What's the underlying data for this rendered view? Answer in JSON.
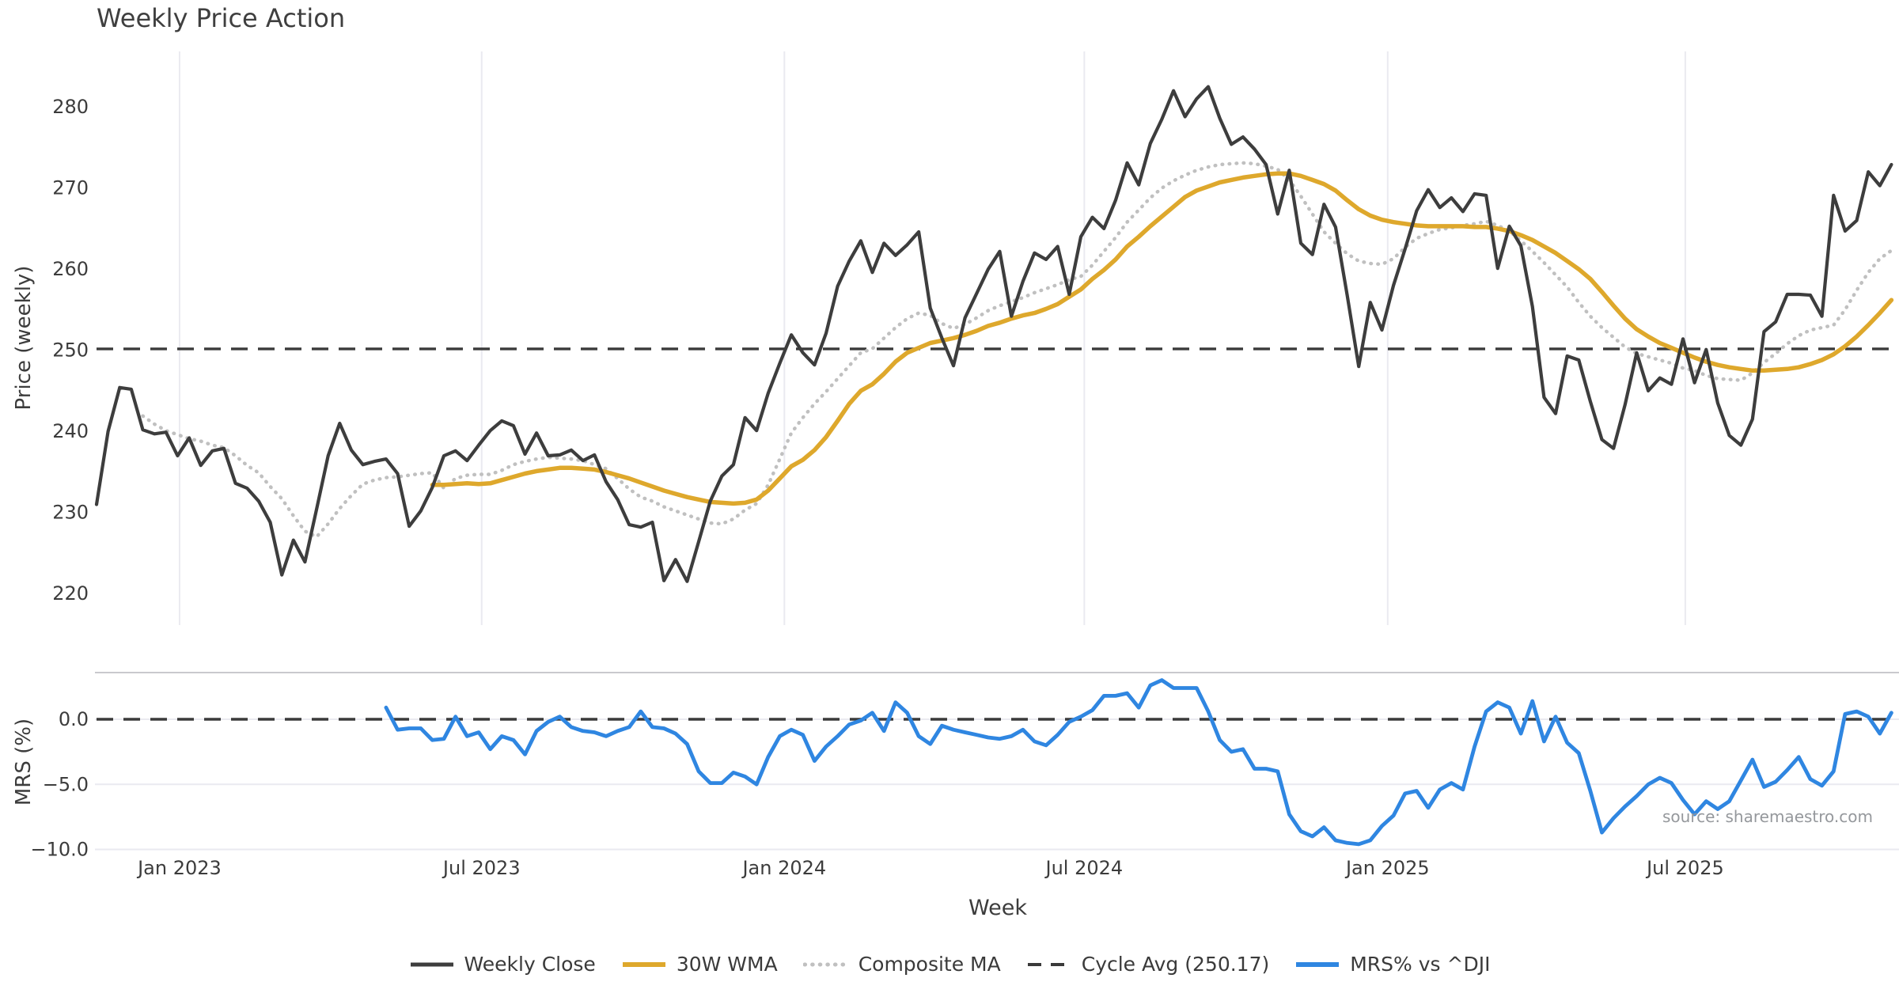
{
  "title": "Weekly Price Action",
  "source_note": "source: sharemaestro.com",
  "colors": {
    "weekly_close": "#3d3d3d",
    "wma_30w": "#dea82c",
    "composite_ma": "#c0c0c0",
    "cycle_avg_dash": "#3a3a3a",
    "mrs_blue": "#2f86e1",
    "grid_light": "#eaeaf0",
    "panel_border": "#c9c9ce",
    "tick_text": "#3c3c3c",
    "title_text": "#3f3f3f",
    "source_text": "#95989c"
  },
  "chart_data": {
    "type": "line",
    "title": "Weekly Price Action",
    "frequency": "weekly",
    "x_axis": {
      "label": "Week",
      "ticks": [
        {
          "label": "Jan 2023",
          "week": 7.17
        },
        {
          "label": "Jul 2023",
          "week": 33.26
        },
        {
          "label": "Jan 2024",
          "week": 59.4
        },
        {
          "label": "Jul 2024",
          "week": 85.3
        },
        {
          "label": "Jan 2025",
          "week": 111.5
        },
        {
          "label": "Jul 2025",
          "week": 137.2
        }
      ]
    },
    "panels": [
      {
        "name": "price",
        "ylabel": "Price (weekly)",
        "ylim": [
          217.5,
          285.5
        ],
        "ytick_values": [
          220,
          230,
          240,
          250,
          260,
          270,
          280
        ],
        "ytick_labels": [
          "220",
          "230",
          "240",
          "250",
          "260",
          "270",
          "280"
        ],
        "grid": "vertical-only",
        "cycle_avg": 250.17,
        "series": [
          {
            "name": "Weekly Close",
            "style": "solid",
            "color_key": "weekly_close",
            "width": 4.2,
            "start_week": 0,
            "values": [
              231.0,
              240.0,
              245.4,
              245.2,
              240.2,
              239.7,
              239.9,
              237.0,
              239.2,
              235.8,
              237.6,
              237.9,
              233.6,
              233.0,
              231.4,
              228.8,
              222.3,
              226.6,
              223.9,
              230.4,
              237.0,
              241.0,
              237.7,
              235.9,
              236.3,
              236.6,
              234.8,
              228.3,
              230.2,
              233.1,
              237.0,
              237.6,
              236.4,
              238.3,
              240.1,
              241.3,
              240.7,
              237.2,
              239.8,
              237.0,
              237.1,
              237.7,
              236.4,
              237.1,
              233.8,
              231.6,
              228.5,
              228.2,
              228.8,
              221.6,
              224.2,
              221.5,
              226.4,
              231.4,
              234.5,
              235.9,
              241.7,
              240.1,
              244.7,
              248.4,
              251.9,
              249.7,
              248.2,
              252.1,
              257.9,
              261.0,
              263.5,
              259.6,
              263.2,
              261.7,
              263.0,
              264.6,
              255.2,
              251.5,
              248.1,
              254.0,
              257.0,
              260.0,
              262.2,
              254.2,
              258.5,
              262.0,
              261.2,
              262.8,
              256.9,
              264.0,
              266.4,
              265.0,
              268.5,
              273.1,
              270.4,
              275.5,
              278.5,
              282.0,
              278.8,
              281.0,
              282.5,
              278.6,
              275.4,
              276.3,
              274.8,
              272.9,
              266.8,
              272.2,
              263.2,
              261.8,
              268.0,
              265.2,
              256.8,
              248.0,
              255.9,
              252.5,
              258.0,
              262.5,
              267.2,
              269.8,
              267.6,
              268.8,
              267.1,
              269.3,
              269.1,
              260.1,
              265.3,
              262.9,
              255.4,
              244.2,
              242.2,
              249.3,
              248.8,
              243.7,
              239.0,
              237.9,
              243.3,
              249.7,
              245.0,
              246.6,
              245.8,
              251.4,
              246.0,
              250.1,
              243.5,
              239.5,
              238.3,
              241.5,
              252.3,
              253.5,
              256.9,
              256.9,
              256.8,
              254.2,
              269.1,
              264.7,
              266.0,
              272.0,
              270.3,
              272.9
            ]
          },
          {
            "name": "30W WMA",
            "style": "solid",
            "color_key": "wma_30w",
            "width": 5.5,
            "start_week": 29,
            "values": [
              233.4,
              233.4,
              233.5,
              233.6,
              233.5,
              233.6,
              234.0,
              234.4,
              234.8,
              235.1,
              235.3,
              235.5,
              235.5,
              235.4,
              235.3,
              235.0,
              234.6,
              234.2,
              233.7,
              233.2,
              232.7,
              232.3,
              231.9,
              231.6,
              231.3,
              231.2,
              231.1,
              231.2,
              231.6,
              232.7,
              234.2,
              235.7,
              236.5,
              237.7,
              239.3,
              241.3,
              243.4,
              245.0,
              245.8,
              247.1,
              248.6,
              249.7,
              250.3,
              250.9,
              251.2,
              251.5,
              251.9,
              252.4,
              253.0,
              253.4,
              253.9,
              254.3,
              254.6,
              255.1,
              255.7,
              256.6,
              257.5,
              258.8,
              259.9,
              261.2,
              262.8,
              264.0,
              265.3,
              266.5,
              267.7,
              268.9,
              269.7,
              270.2,
              270.7,
              271.0,
              271.3,
              271.5,
              271.7,
              271.8,
              271.8,
              271.5,
              271.0,
              270.5,
              269.7,
              268.5,
              267.4,
              266.6,
              266.1,
              265.8,
              265.6,
              265.4,
              265.3,
              265.3,
              265.3,
              265.3,
              265.2,
              265.2,
              265.0,
              264.7,
              264.2,
              263.6,
              262.8,
              262.0,
              261.0,
              260.0,
              258.8,
              257.2,
              255.5,
              253.9,
              252.6,
              251.7,
              250.9,
              250.3,
              249.7,
              249.1,
              248.6,
              248.2,
              247.9,
              247.7,
              247.5,
              247.5,
              247.6,
              247.7,
              247.9,
              248.3,
              248.8,
              249.5,
              250.5,
              251.7,
              253.1,
              254.6,
              256.2
            ]
          },
          {
            "name": "Composite MA",
            "style": "dotted",
            "color_key": "composite_ma",
            "width": 4.5,
            "start_week": 4,
            "values": [
              241.9,
              240.9,
              240.1,
              239.6,
              239.1,
              238.8,
              238.3,
              238.0,
              237.0,
              235.8,
              234.9,
              233.2,
              231.7,
              229.6,
              227.7,
              227.0,
              228.6,
              230.5,
              232.1,
              233.5,
              234.0,
              234.3,
              234.4,
              234.6,
              234.8,
              234.9,
              233.0,
              234.2,
              234.6,
              234.7,
              234.7,
              235.2,
              235.9,
              236.3,
              236.6,
              236.8,
              236.7,
              236.6,
              236.4,
              235.9,
              235.4,
              234.2,
              232.9,
              231.9,
              231.4,
              230.7,
              230.2,
              229.7,
              229.2,
              228.7,
              228.6,
              229.2,
              230.3,
              231.1,
              233.4,
              236.6,
              239.8,
              241.7,
              243.4,
              244.9,
              246.5,
              248.1,
              249.7,
              250.2,
              251.5,
              252.8,
              253.9,
              254.6,
              254.3,
              253.3,
              252.7,
              253.2,
              254.0,
              254.9,
              255.5,
              256.0,
              256.5,
              257.1,
              257.6,
              258.1,
              258.7,
              259.1,
              260.5,
              262.2,
              263.9,
              265.8,
              267.3,
              268.8,
              270.0,
              270.9,
              271.6,
              272.2,
              272.6,
              272.9,
              273.0,
              273.1,
              273.0,
              272.7,
              272.3,
              271.0,
              269.0,
              266.8,
              264.6,
              263.2,
              261.9,
              261.0,
              260.7,
              260.6,
              261.3,
              262.7,
              263.8,
              264.4,
              264.9,
              265.1,
              265.4,
              265.6,
              265.9,
              265.4,
              264.7,
              263.5,
              262.2,
              260.8,
              259.3,
              257.8,
              255.9,
              254.2,
              252.8,
              251.6,
              250.4,
              249.6,
              249.2,
              248.8,
              248.4,
              247.8,
              247.5,
              246.9,
              246.5,
              246.4,
              246.3,
              247.2,
              248.5,
              249.6,
              250.8,
              251.8,
              252.5,
              252.8,
              253.1,
              255.0,
              257.4,
              259.6,
              261.3,
              262.3
            ]
          }
        ]
      },
      {
        "name": "mrs",
        "ylabel": "MRS (%)",
        "ylim": [
          -11.3,
          3.6
        ],
        "ytick_values": [
          0,
          -5,
          -10
        ],
        "ytick_labels": [
          "0.0",
          "−5.0",
          "−10.0"
        ],
        "grid": "horizontal-only",
        "zero_line": 0.0,
        "series": [
          {
            "name": "MRS% vs ^DJI",
            "style": "solid",
            "color_key": "mrs_blue",
            "width": 4.8,
            "start_week": 25,
            "values": [
              0.9,
              -0.8,
              -0.7,
              -0.7,
              -1.6,
              -1.5,
              0.2,
              -1.3,
              -1.0,
              -2.3,
              -1.3,
              -1.6,
              -2.7,
              -0.9,
              -0.2,
              0.2,
              -0.6,
              -0.9,
              -1.0,
              -1.3,
              -0.9,
              -0.6,
              0.6,
              -0.6,
              -0.7,
              -1.1,
              -1.9,
              -4.0,
              -4.9,
              -4.9,
              -4.1,
              -4.4,
              -5.0,
              -2.9,
              -1.3,
              -0.8,
              -1.2,
              -3.2,
              -2.1,
              -1.3,
              -0.4,
              -0.1,
              0.5,
              -0.9,
              1.3,
              0.5,
              -1.3,
              -1.9,
              -0.5,
              -0.8,
              -1.0,
              -1.2,
              -1.4,
              -1.5,
              -1.3,
              -0.8,
              -1.7,
              -2.0,
              -1.2,
              -0.2,
              0.2,
              0.7,
              1.8,
              1.8,
              2.0,
              0.9,
              2.6,
              3.0,
              2.4,
              2.4,
              2.4,
              0.6,
              -1.6,
              -2.5,
              -2.3,
              -3.8,
              -3.8,
              -4.0,
              -7.3,
              -8.6,
              -9.0,
              -8.3,
              -9.3,
              -9.5,
              -9.6,
              -9.3,
              -8.2,
              -7.4,
              -5.7,
              -5.5,
              -6.8,
              -5.4,
              -4.9,
              -5.4,
              -2.1,
              0.6,
              1.3,
              0.9,
              -1.1,
              1.4,
              -1.7,
              0.2,
              -1.8,
              -2.6,
              -5.5,
              -8.7,
              -7.6,
              -6.7,
              -5.9,
              -5.0,
              -4.5,
              -4.9,
              -6.2,
              -7.3,
              -6.3,
              -6.9,
              -6.3,
              -4.7,
              -3.1,
              -5.2,
              -4.8,
              -3.9,
              -2.9,
              -4.6,
              -5.1,
              -4.0,
              0.4,
              0.6,
              0.2,
              -1.1,
              0.5
            ]
          }
        ]
      }
    ],
    "legend": [
      {
        "label": "Weekly Close",
        "style": "solid",
        "color_key": "weekly_close",
        "width": 5
      },
      {
        "label": "30W WMA",
        "style": "solid",
        "color_key": "wma_30w",
        "width": 6
      },
      {
        "label": "Composite MA",
        "style": "dotted",
        "color_key": "composite_ma",
        "width": 5
      },
      {
        "label": "Cycle Avg (250.17)",
        "style": "dashed",
        "color_key": "cycle_avg_dash",
        "width": 4
      },
      {
        "label": "MRS% vs ^DJI",
        "style": "solid",
        "color_key": "mrs_blue",
        "width": 6
      }
    ]
  }
}
